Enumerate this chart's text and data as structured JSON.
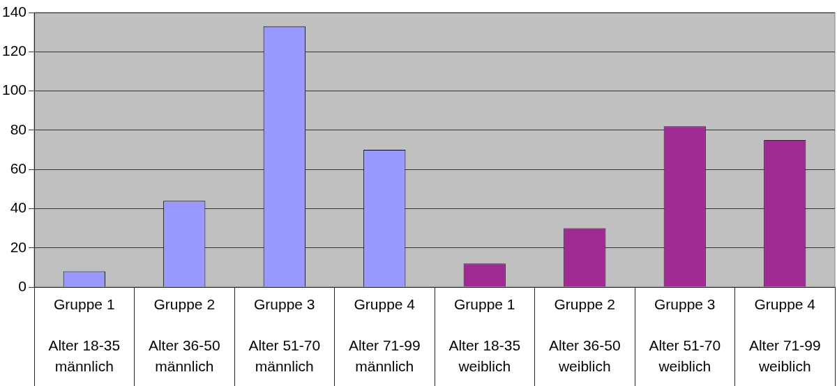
{
  "chart_data": {
    "type": "bar",
    "categories": [
      "Gruppe 1\n\nAlter 18-35\nmännlich",
      "Gruppe 2\n\nAlter 36-50\nmännlich",
      "Gruppe 3\n\nAlter 51-70\nmännlich",
      "Gruppe 4\n\nAlter 71-99\nmännlich",
      "Gruppe 1\n\nAlter 18-35\nweiblich",
      "Gruppe 2\n\nAlter 36-50\nweiblich",
      "Gruppe 3\n\nAlter 51-70\nweiblich",
      "Gruppe 4\n\nAlter 71-99\nweiblich"
    ],
    "values": [
      8,
      44,
      133,
      70,
      12,
      30,
      82,
      75
    ],
    "colors": [
      "#9999ff",
      "#9999ff",
      "#9999ff",
      "#9999ff",
      "#9e2a92",
      "#9e2a92",
      "#9e2a92",
      "#9e2a92"
    ],
    "ylim": [
      0,
      140
    ],
    "yticks": [
      0,
      20,
      40,
      60,
      80,
      100,
      120,
      140
    ],
    "grid": "y",
    "legend": false
  }
}
